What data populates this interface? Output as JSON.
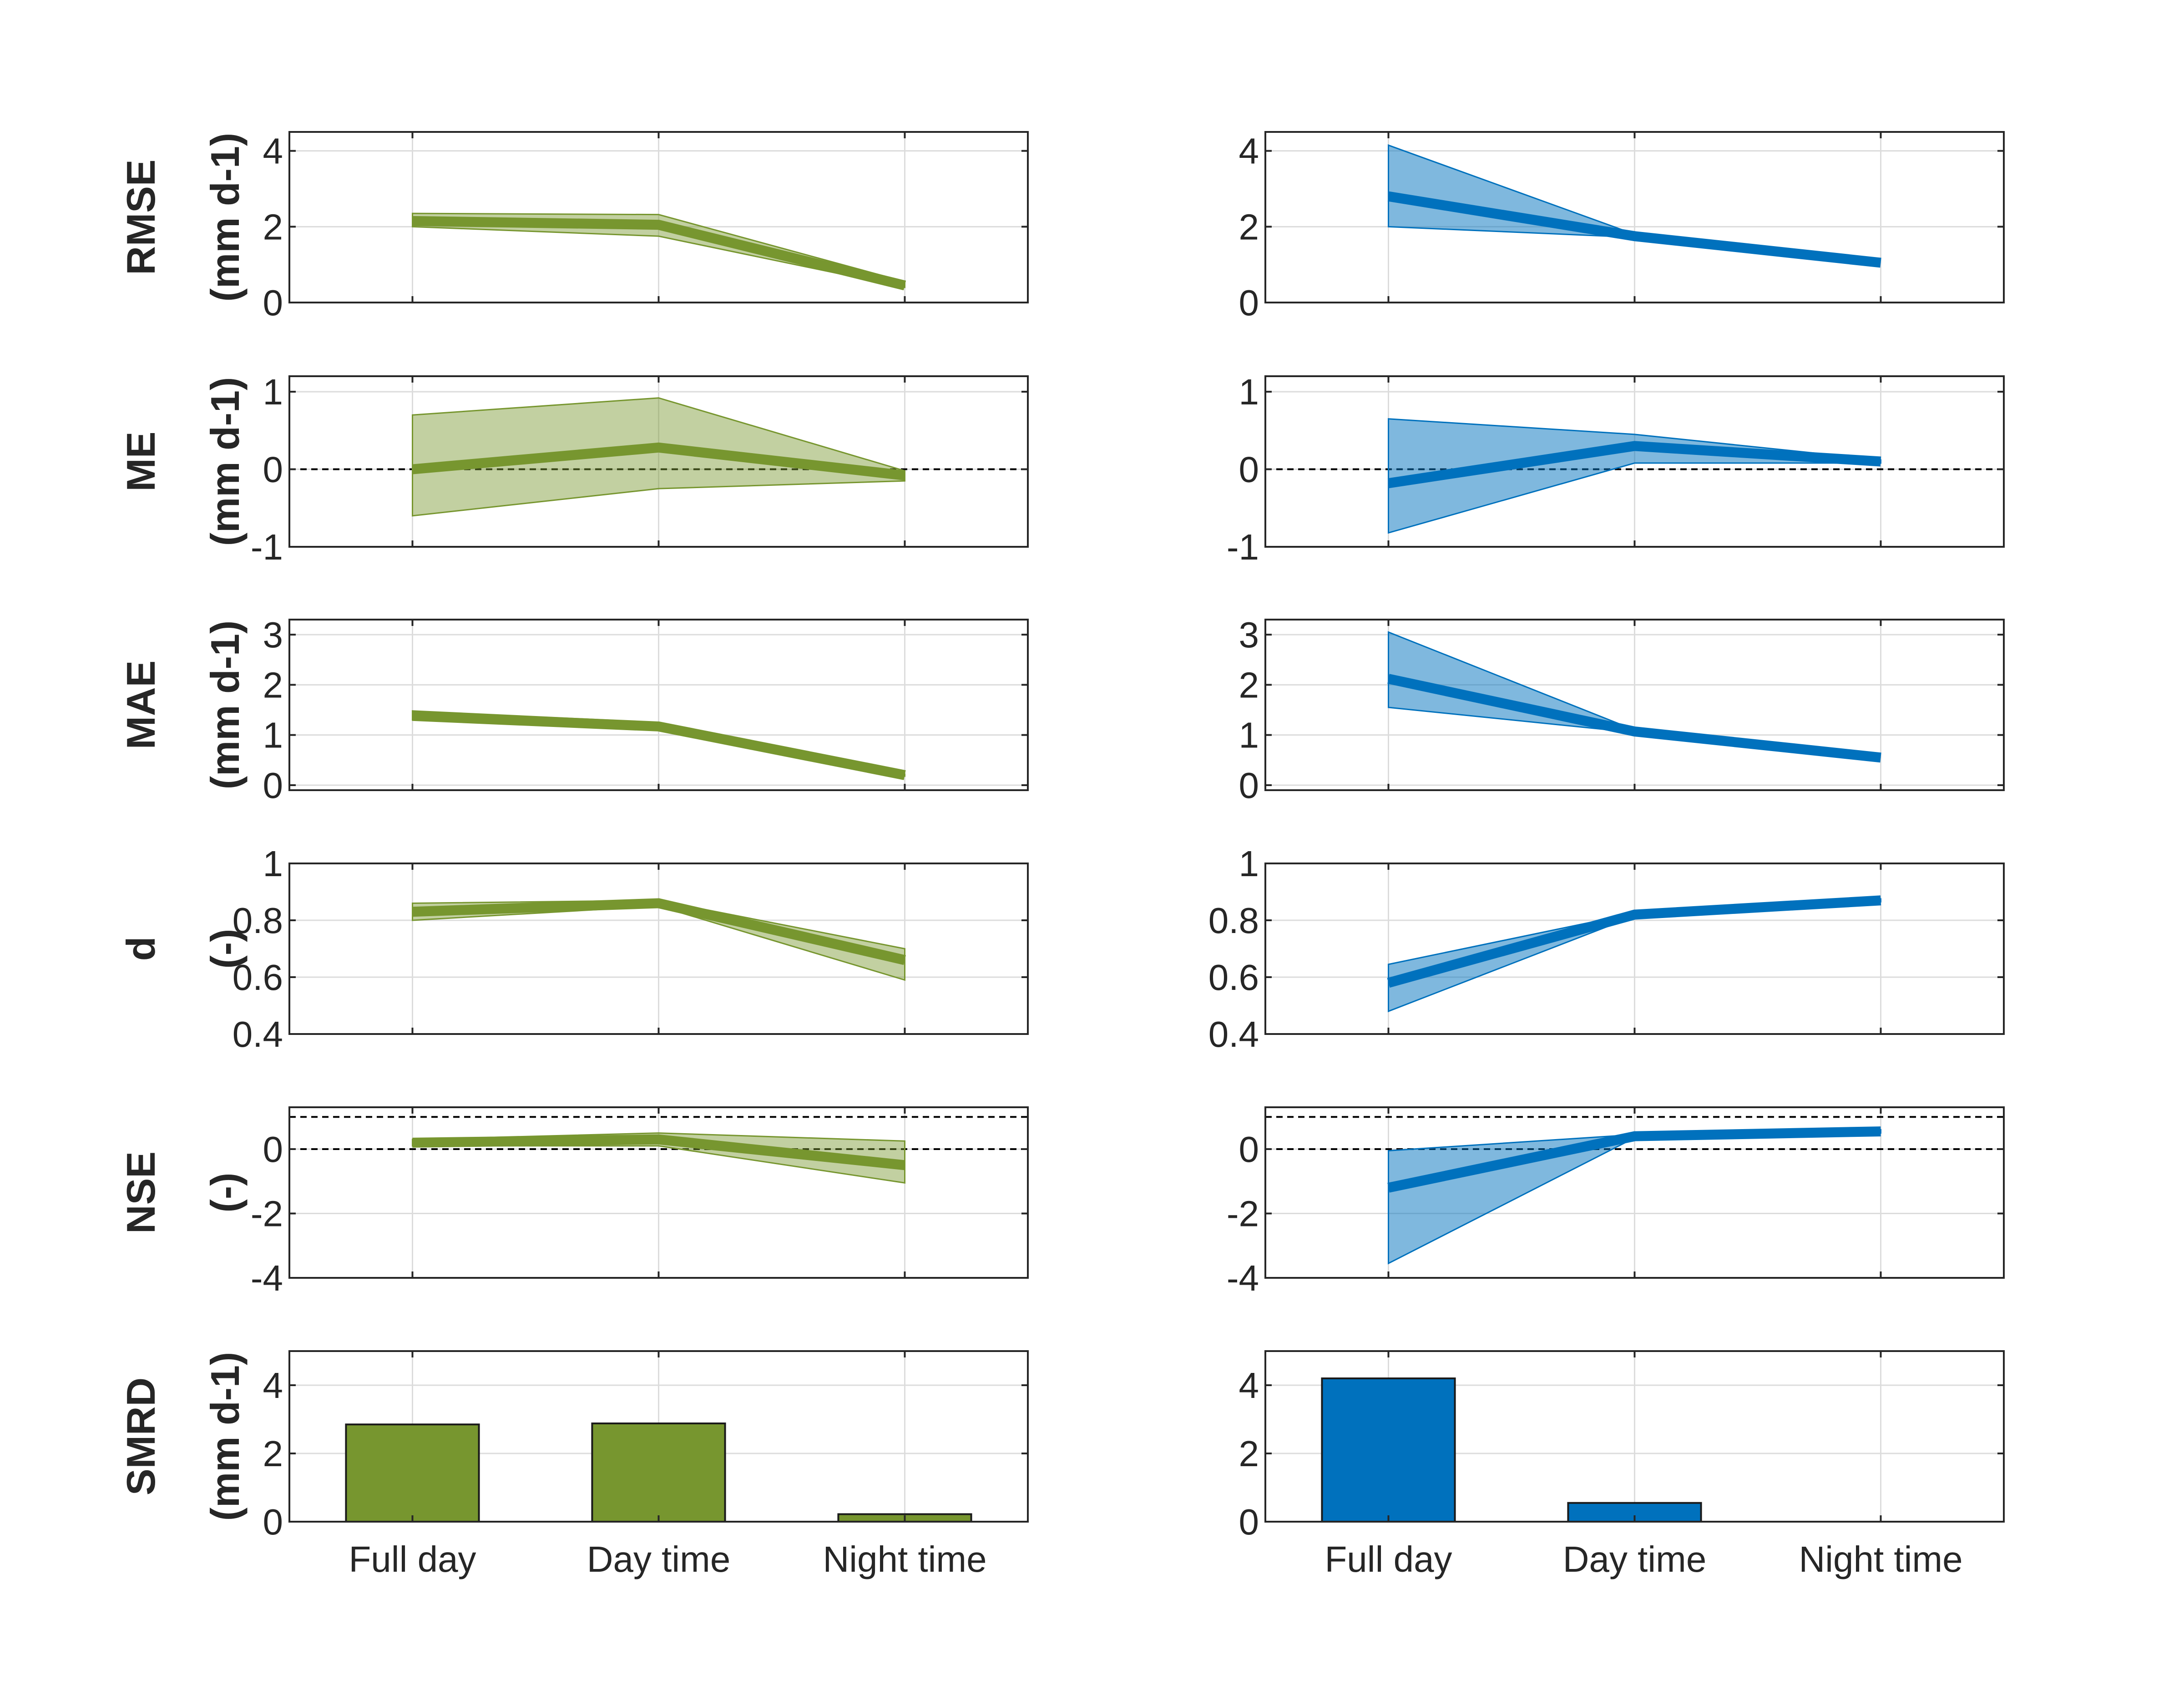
{
  "colors": {
    "green": "#77962F",
    "green_band": "rgba(119,150,47,0.45)",
    "blue": "#0071BD",
    "blue_band": "rgba(0,113,189,0.5)",
    "axis": "#262626",
    "grid": "#dcdcdc"
  },
  "chart_data": [
    {
      "type": "line",
      "row": "RMSE",
      "column": "left",
      "ylabel": [
        "RMSE",
        "(mm d-1)"
      ],
      "categories": [
        "Full day",
        "Day time",
        "Night time"
      ],
      "ylim": [
        0,
        4.5
      ],
      "yticks": [
        "0",
        "2",
        "4"
      ],
      "ytick_values": [
        0,
        2,
        4
      ],
      "grid": true,
      "color": "green",
      "mean": [
        2.15,
        2.05,
        0.45
      ],
      "band_low": [
        2.0,
        1.75,
        0.4
      ],
      "band_high": [
        2.35,
        2.32,
        0.55
      ]
    },
    {
      "type": "line",
      "row": "RMSE",
      "column": "right",
      "ylabel": null,
      "categories": [
        "Full day",
        "Day time",
        "Night time"
      ],
      "ylim": [
        0,
        4.5
      ],
      "yticks": [
        "0",
        "2",
        "4"
      ],
      "ytick_values": [
        0,
        2,
        4
      ],
      "grid": true,
      "color": "blue",
      "mean": [
        2.8,
        1.75,
        1.05
      ],
      "band_low": [
        2.0,
        1.72,
        1.05
      ],
      "band_high": [
        4.15,
        1.8,
        1.05
      ]
    },
    {
      "type": "line",
      "row": "ME",
      "column": "left",
      "ylabel": [
        "ME",
        "(mm d-1)"
      ],
      "categories": [
        "Full day",
        "Day time",
        "Night time"
      ],
      "ylim": [
        -1,
        1.2
      ],
      "yticks": [
        "-1",
        "0",
        "1"
      ],
      "ytick_values": [
        -1,
        0,
        1
      ],
      "grid": true,
      "ref_lines": [
        0
      ],
      "color": "green",
      "mean": [
        0.0,
        0.28,
        -0.08
      ],
      "band_low": [
        -0.6,
        -0.25,
        -0.15
      ],
      "band_high": [
        0.7,
        0.92,
        -0.02
      ]
    },
    {
      "type": "line",
      "row": "ME",
      "column": "right",
      "ylabel": null,
      "categories": [
        "Full day",
        "Day time",
        "Night time"
      ],
      "ylim": [
        -1,
        1.2
      ],
      "yticks": [
        "-1",
        "0",
        "1"
      ],
      "ytick_values": [
        -1,
        0,
        1
      ],
      "grid": true,
      "ref_lines": [
        0
      ],
      "color": "blue",
      "mean": [
        -0.18,
        0.3,
        0.1
      ],
      "band_low": [
        -0.82,
        0.08,
        0.08
      ],
      "band_high": [
        0.65,
        0.45,
        0.12
      ]
    },
    {
      "type": "line",
      "row": "MAE",
      "column": "left",
      "ylabel": [
        "MAE",
        "(mm d-1)"
      ],
      "categories": [
        "Full day",
        "Day time",
        "Night time"
      ],
      "ylim": [
        -0.1,
        3.3
      ],
      "yticks": [
        "0",
        "1",
        "2",
        "3"
      ],
      "ytick_values": [
        0,
        1,
        2,
        3
      ],
      "grid": true,
      "color": "green",
      "mean": [
        1.38,
        1.17,
        0.2
      ],
      "band_low": [
        1.3,
        1.1,
        0.18
      ],
      "band_high": [
        1.48,
        1.25,
        0.22
      ]
    },
    {
      "type": "line",
      "row": "MAE",
      "column": "right",
      "ylabel": null,
      "categories": [
        "Full day",
        "Day time",
        "Night time"
      ],
      "ylim": [
        -0.1,
        3.3
      ],
      "yticks": [
        "0",
        "1",
        "2",
        "3"
      ],
      "ytick_values": [
        0,
        1,
        2,
        3
      ],
      "grid": true,
      "color": "blue",
      "mean": [
        2.12,
        1.07,
        0.55
      ],
      "band_low": [
        1.55,
        1.05,
        0.55
      ],
      "band_high": [
        3.05,
        1.1,
        0.55
      ]
    },
    {
      "type": "line",
      "row": "d",
      "column": "left",
      "ylabel": [
        "d",
        "(-)"
      ],
      "categories": [
        "Full day",
        "Day time",
        "Night time"
      ],
      "ylim": [
        0.4,
        1.0
      ],
      "yticks": [
        "0.4",
        "0.6",
        "0.8",
        "1"
      ],
      "ytick_values": [
        0.4,
        0.6,
        0.8,
        1.0
      ],
      "grid": true,
      "color": "green",
      "mean": [
        0.83,
        0.86,
        0.66
      ],
      "band_low": [
        0.8,
        0.85,
        0.59
      ],
      "band_high": [
        0.86,
        0.87,
        0.7
      ]
    },
    {
      "type": "line",
      "row": "d",
      "column": "right",
      "ylabel": null,
      "categories": [
        "Full day",
        "Day time",
        "Night time"
      ],
      "ylim": [
        0.4,
        1.0
      ],
      "yticks": [
        "0.4",
        "0.6",
        "0.8",
        "1"
      ],
      "ytick_values": [
        0.4,
        0.6,
        0.8,
        1.0
      ],
      "grid": true,
      "color": "blue",
      "mean": [
        0.58,
        0.82,
        0.87
      ],
      "band_low": [
        0.48,
        0.815,
        0.865
      ],
      "band_high": [
        0.645,
        0.825,
        0.875
      ]
    },
    {
      "type": "line",
      "row": "NSE",
      "column": "left",
      "ylabel": [
        "NSE",
        "(-)"
      ],
      "categories": [
        "Full day",
        "Day time",
        "Night time"
      ],
      "ylim": [
        -4,
        1.3
      ],
      "yticks": [
        "-4",
        "-2",
        "0"
      ],
      "ytick_values": [
        -4,
        -2,
        0
      ],
      "grid": true,
      "ref_lines": [
        0,
        1
      ],
      "color": "green",
      "mean": [
        0.2,
        0.3,
        -0.5
      ],
      "band_low": [
        0.1,
        0.1,
        -1.05
      ],
      "band_high": [
        0.3,
        0.5,
        0.25
      ]
    },
    {
      "type": "line",
      "row": "NSE",
      "column": "right",
      "ylabel": null,
      "categories": [
        "Full day",
        "Day time",
        "Night time"
      ],
      "ylim": [
        -4,
        1.3
      ],
      "yticks": [
        "-4",
        "-2",
        "0"
      ],
      "ytick_values": [
        -4,
        -2,
        0
      ],
      "grid": true,
      "ref_lines": [
        0,
        1
      ],
      "color": "blue",
      "mean": [
        -1.2,
        0.4,
        0.55
      ],
      "band_low": [
        -3.55,
        0.35,
        0.5
      ],
      "band_high": [
        -0.05,
        0.45,
        0.6
      ]
    },
    {
      "type": "bar",
      "row": "SMRD",
      "column": "left",
      "ylabel": [
        "SMRD",
        "(mm d-1)"
      ],
      "categories": [
        "Full day",
        "Day time",
        "Night time"
      ],
      "ylim": [
        0,
        5
      ],
      "yticks": [
        "0",
        "2",
        "4"
      ],
      "ytick_values": [
        0,
        2,
        4
      ],
      "grid": true,
      "color": "green",
      "values": [
        2.85,
        2.88,
        0.22
      ]
    },
    {
      "type": "bar",
      "row": "SMRD",
      "column": "right",
      "ylabel": null,
      "categories": [
        "Full day",
        "Day time",
        "Night time"
      ],
      "ylim": [
        0,
        5
      ],
      "yticks": [
        "0",
        "2",
        "4"
      ],
      "ytick_values": [
        0,
        2,
        4
      ],
      "grid": true,
      "color": "blue",
      "values": [
        4.2,
        0.55,
        0.0
      ]
    }
  ]
}
